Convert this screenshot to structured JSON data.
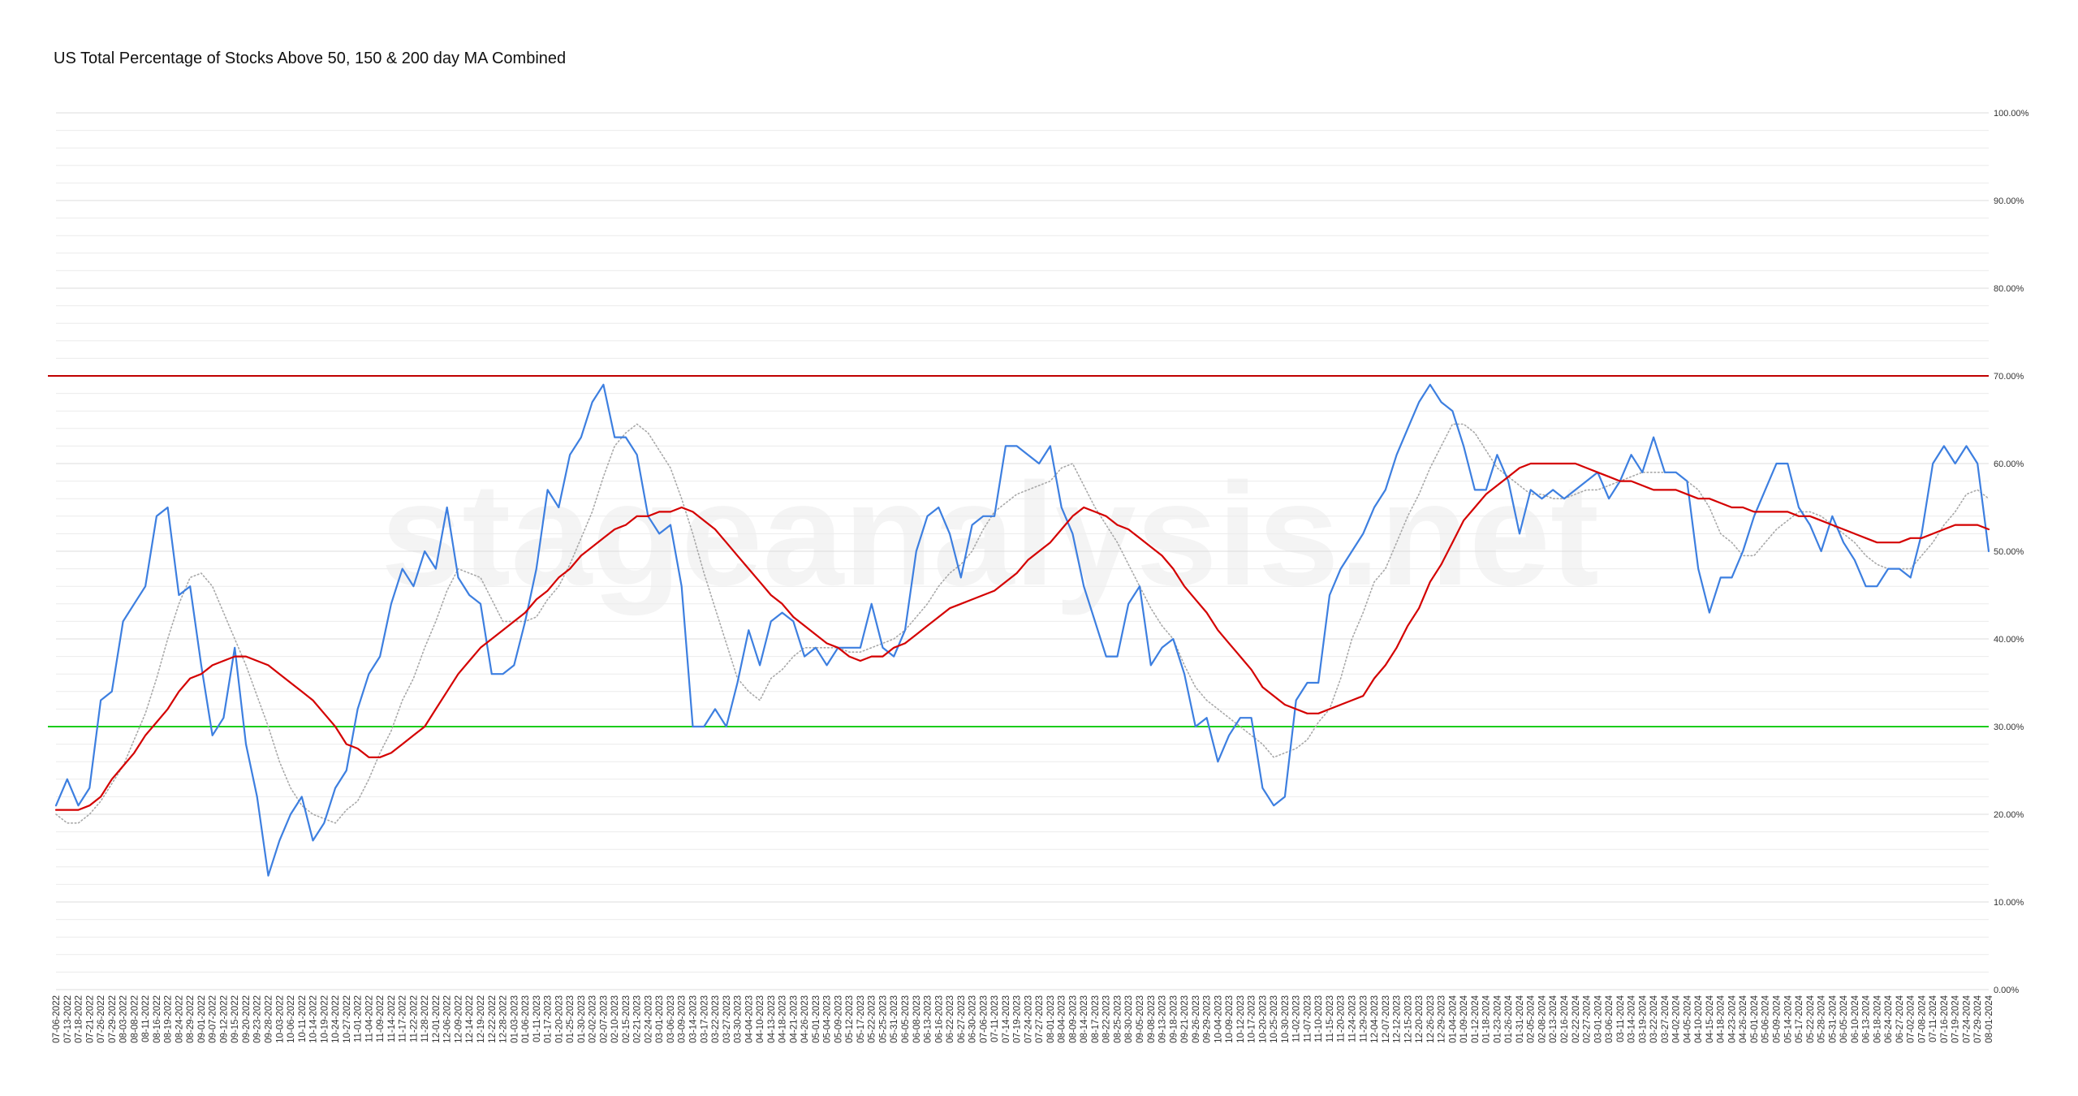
{
  "chart_data": {
    "type": "line",
    "title": "US Total Percentage of Stocks Above 50, 150 & 200 day MA Combined",
    "watermark": "stageanalysis.net",
    "categories": [
      "07-06-2022",
      "07-13-2022",
      "07-18-2022",
      "07-21-2022",
      "07-26-2022",
      "07-29-2022",
      "08-03-2022",
      "08-08-2022",
      "08-11-2022",
      "08-16-2022",
      "08-19-2022",
      "08-24-2022",
      "08-29-2022",
      "09-01-2022",
      "09-07-2022",
      "09-12-2022",
      "09-15-2022",
      "09-20-2022",
      "09-23-2022",
      "09-28-2022",
      "10-03-2022",
      "10-06-2022",
      "10-11-2022",
      "10-14-2022",
      "10-19-2022",
      "10-24-2022",
      "10-27-2022",
      "11-01-2022",
      "11-04-2022",
      "11-09-2022",
      "11-14-2022",
      "11-17-2022",
      "11-22-2022",
      "11-28-2022",
      "12-01-2022",
      "12-06-2022",
      "12-09-2022",
      "12-14-2022",
      "12-19-2022",
      "12-22-2022",
      "12-28-2022",
      "01-03-2023",
      "01-06-2023",
      "01-11-2023",
      "01-17-2023",
      "01-20-2023",
      "01-25-2023",
      "01-30-2023",
      "02-02-2023",
      "02-07-2023",
      "02-10-2023",
      "02-15-2023",
      "02-21-2023",
      "02-24-2023",
      "03-01-2023",
      "03-06-2023",
      "03-09-2023",
      "03-14-2023",
      "03-17-2023",
      "03-22-2023",
      "03-27-2023",
      "03-30-2023",
      "04-04-2023",
      "04-10-2023",
      "04-13-2023",
      "04-18-2023",
      "04-21-2023",
      "04-26-2023",
      "05-01-2023",
      "05-04-2023",
      "05-09-2023",
      "05-12-2023",
      "05-17-2023",
      "05-22-2023",
      "05-25-2023",
      "05-31-2023",
      "06-05-2023",
      "06-08-2023",
      "06-13-2023",
      "06-16-2023",
      "06-22-2023",
      "06-27-2023",
      "06-30-2023",
      "07-06-2023",
      "07-11-2023",
      "07-14-2023",
      "07-19-2023",
      "07-24-2023",
      "07-27-2023",
      "08-01-2023",
      "08-04-2023",
      "08-09-2023",
      "08-14-2023",
      "08-17-2023",
      "08-22-2023",
      "08-25-2023",
      "08-30-2023",
      "09-05-2023",
      "09-08-2023",
      "09-13-2023",
      "09-18-2023",
      "09-21-2023",
      "09-26-2023",
      "09-29-2023",
      "10-04-2023",
      "10-09-2023",
      "10-12-2023",
      "10-17-2023",
      "10-20-2023",
      "10-25-2023",
      "10-30-2023",
      "11-02-2023",
      "11-07-2023",
      "11-10-2023",
      "11-15-2023",
      "11-20-2023",
      "11-24-2023",
      "11-29-2023",
      "12-04-2023",
      "12-07-2023",
      "12-12-2023",
      "12-15-2023",
      "12-20-2023",
      "12-26-2023",
      "12-29-2023",
      "01-04-2024",
      "01-09-2024",
      "01-12-2024",
      "01-18-2024",
      "01-23-2024",
      "01-26-2024",
      "01-31-2024",
      "02-05-2024",
      "02-08-2024",
      "02-13-2024",
      "02-16-2024",
      "02-22-2024",
      "02-27-2024",
      "03-01-2024",
      "03-06-2024",
      "03-11-2024",
      "03-14-2024",
      "03-19-2024",
      "03-22-2024",
      "03-27-2024",
      "04-02-2024",
      "04-05-2024",
      "04-10-2024",
      "04-15-2024",
      "04-18-2024",
      "04-23-2024",
      "04-26-2024",
      "05-01-2024",
      "05-06-2024",
      "05-09-2024",
      "05-14-2024",
      "05-17-2024",
      "05-22-2024",
      "05-28-2024",
      "05-31-2024",
      "06-05-2024",
      "06-10-2024",
      "06-13-2024",
      "06-18-2024",
      "06-24-2024",
      "06-27-2024",
      "07-02-2024",
      "07-08-2024",
      "07-11-2024",
      "07-16-2024",
      "07-19-2024",
      "07-24-2024",
      "07-29-2024",
      "08-01-2024"
    ],
    "series": [
      {
        "color": "#3d7fe0",
        "style": "solid",
        "values": [
          21,
          24,
          21,
          23,
          33,
          34,
          42,
          44,
          46,
          54,
          55,
          45,
          46,
          37,
          29,
          31,
          39,
          28,
          22,
          13,
          17,
          20,
          22,
          17,
          19,
          23,
          25,
          32,
          36,
          38,
          44,
          48,
          46,
          50,
          48,
          55,
          47,
          45,
          44,
          36,
          36,
          37,
          42,
          48,
          57,
          55,
          61,
          63,
          67,
          69,
          63,
          63,
          61,
          54,
          52,
          53,
          46,
          30,
          30,
          32,
          30,
          35,
          41,
          37,
          42,
          43,
          42,
          38,
          39,
          37,
          39,
          39,
          39,
          44,
          39,
          38,
          41,
          50,
          54,
          55,
          52,
          47,
          53,
          54,
          54,
          62,
          62,
          61,
          60,
          62,
          55,
          52,
          46,
          42,
          38,
          38,
          44,
          46,
          37,
          39,
          40,
          36,
          30,
          31,
          26,
          29,
          31,
          31,
          23,
          21,
          22,
          33,
          35,
          35,
          45,
          48,
          50,
          52,
          55,
          57,
          61,
          64,
          67,
          69,
          67,
          66,
          62,
          57,
          57,
          61,
          58,
          52,
          57,
          56,
          57,
          56,
          57,
          58,
          59,
          56,
          58,
          61,
          59,
          63,
          59,
          59,
          58,
          48,
          43,
          47,
          47,
          50,
          54,
          57,
          60,
          60,
          55,
          53,
          50,
          54,
          51,
          49,
          46,
          46,
          48,
          48,
          47,
          52,
          60,
          62,
          60,
          62,
          60,
          50
        ]
      },
      {
        "color": "#d40000",
        "style": "solid",
        "values": [
          20.5,
          20.5,
          20.5,
          21,
          22,
          24,
          25.5,
          27,
          29,
          30.5,
          32,
          34,
          35.5,
          36,
          37,
          37.5,
          38,
          38,
          37.5,
          37,
          36,
          35,
          34,
          33,
          31.5,
          30,
          28,
          27.5,
          26.5,
          26.5,
          27,
          28,
          29,
          30,
          32,
          34,
          36,
          37.5,
          39,
          40,
          41,
          42,
          43,
          44.5,
          45.5,
          47,
          48,
          49.5,
          50.5,
          51.5,
          52.5,
          53,
          54,
          54,
          54.5,
          54.5,
          55,
          54.5,
          53.5,
          52.5,
          51,
          49.5,
          48,
          46.5,
          45,
          44,
          42.5,
          41.5,
          40.5,
          39.5,
          39,
          38,
          37.5,
          38,
          38,
          39,
          39.5,
          40.5,
          41.5,
          42.5,
          43.5,
          44,
          44.5,
          45,
          45.5,
          46.5,
          47.5,
          49,
          50,
          51,
          52.5,
          54,
          55,
          54.5,
          54,
          53,
          52.5,
          51.5,
          50.5,
          49.5,
          48,
          46,
          44.5,
          43,
          41,
          39.5,
          38,
          36.5,
          34.5,
          33.5,
          32.5,
          32,
          31.5,
          31.5,
          32,
          32.5,
          33,
          33.5,
          35.5,
          37,
          39,
          41.5,
          43.5,
          46.5,
          48.5,
          51,
          53.5,
          55,
          56.5,
          57.5,
          58.5,
          59.5,
          60,
          60,
          60,
          60,
          60,
          59.5,
          59,
          58.5,
          58,
          58,
          57.5,
          57,
          57,
          57,
          56.5,
          56,
          56,
          55.5,
          55,
          55,
          54.5,
          54.5,
          54.5,
          54.5,
          54,
          54,
          53.5,
          53,
          52.5,
          52,
          51.5,
          51,
          51,
          51,
          51.5,
          51.5,
          52,
          52.5,
          53,
          53,
          53,
          52.5
        ]
      },
      {
        "color": "#a8a8a8",
        "style": "dotted",
        "values": [
          20,
          19,
          19,
          20,
          21.5,
          23.5,
          25.5,
          28.5,
          31.5,
          35.5,
          40,
          44,
          47,
          47.5,
          46,
          43,
          40,
          37,
          33.5,
          30,
          26,
          23,
          21,
          20,
          19.5,
          19,
          20.5,
          21.5,
          24,
          27,
          29.5,
          33,
          35.5,
          39,
          42,
          45.5,
          48,
          47.5,
          47,
          44.5,
          42,
          42,
          42,
          42.5,
          44.5,
          46,
          48.5,
          51.5,
          54.5,
          58.5,
          62,
          63.5,
          64.5,
          63.5,
          61.5,
          59.5,
          56,
          52,
          47.5,
          43.5,
          39.5,
          35.5,
          34,
          33,
          35.5,
          36.5,
          38,
          39,
          39,
          39,
          39,
          38.5,
          38.5,
          39,
          39.5,
          40,
          41,
          42.5,
          44,
          46,
          47.5,
          48.5,
          50,
          52.5,
          54.5,
          55.5,
          56.5,
          57,
          57.5,
          58,
          59.5,
          60,
          57.5,
          55,
          53,
          51,
          48.5,
          46,
          43.5,
          41.5,
          40,
          37,
          34.5,
          33,
          32,
          31,
          30,
          29,
          28,
          26.5,
          27,
          27.5,
          28.5,
          30.5,
          32,
          35.5,
          40,
          43,
          46.5,
          48,
          51,
          54,
          56.5,
          59.5,
          62,
          64.5,
          64.5,
          63.5,
          61.5,
          59.5,
          58.5,
          57.5,
          56.5,
          56.5,
          56,
          56,
          56.5,
          57,
          57,
          57.5,
          58,
          58.5,
          59,
          59,
          59,
          59,
          58,
          57,
          55,
          52,
          51,
          49.5,
          49.5,
          51,
          52.5,
          53.5,
          54.5,
          54.5,
          54,
          53,
          52,
          51,
          49.5,
          48.5,
          48,
          48,
          48,
          49.5,
          51,
          53,
          54.5,
          56.5,
          57,
          56
        ]
      }
    ],
    "hlines": [
      {
        "value": 70,
        "color": "#c00000"
      },
      {
        "value": 30,
        "color": "#1ccc1c"
      }
    ],
    "ylim": [
      0,
      100
    ],
    "yticks": [
      {
        "value": 0,
        "label": "0.00%"
      },
      {
        "value": 10,
        "label": "10.00%"
      },
      {
        "value": 20,
        "label": "20.00%"
      },
      {
        "value": 30,
        "label": "30.00%"
      },
      {
        "value": 40,
        "label": "40.00%"
      },
      {
        "value": 50,
        "label": "50.00%"
      },
      {
        "value": 60,
        "label": "60.00%"
      },
      {
        "value": 70,
        "label": "70.00%"
      },
      {
        "value": 80,
        "label": "80.00%"
      },
      {
        "value": 90,
        "label": "90.00%"
      },
      {
        "value": 100,
        "label": "100.00%"
      }
    ],
    "minor_yticks": [
      2,
      4,
      6,
      8,
      12,
      14,
      16,
      18,
      22,
      24,
      26,
      28,
      32,
      34,
      36,
      38,
      42,
      44,
      46,
      48,
      52,
      54,
      56,
      58,
      62,
      64,
      66,
      68,
      72,
      74,
      76,
      78,
      82,
      84,
      86,
      88,
      92,
      94,
      96,
      98
    ],
    "grid": true
  }
}
